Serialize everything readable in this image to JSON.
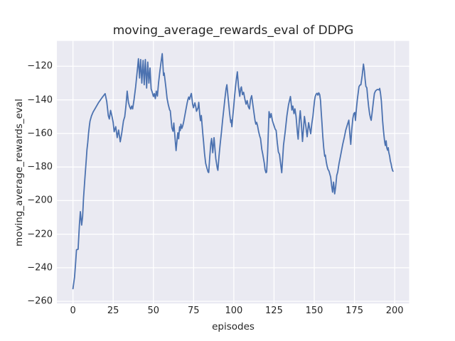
{
  "chart_data": {
    "type": "line",
    "title": "moving_average_rewards_eval of DDPG",
    "xlabel": "episodes",
    "ylabel": "moving_average_rewards_eval",
    "xlim": [
      -10,
      209
    ],
    "ylim": [
      -261.3,
      -104.9
    ],
    "xticks": [
      0,
      25,
      50,
      75,
      100,
      125,
      150,
      175,
      200
    ],
    "xtick_labels": [
      "0",
      "25",
      "50",
      "75",
      "100",
      "125",
      "150",
      "175",
      "200"
    ],
    "yticks": [
      -260,
      -240,
      -220,
      -200,
      -180,
      -160,
      -140,
      -120
    ],
    "ytick_labels": [
      "−260",
      "−240",
      "−220",
      "−200",
      "−180",
      "−160",
      "−140",
      "−120"
    ],
    "grid": true,
    "legend": null,
    "colors": {
      "figure_bg": "#FFFFFF",
      "plot_bg": "#EAEAF2",
      "grid": "#FFFFFF",
      "line": "#4C72B0",
      "text": "#262626"
    },
    "series": [
      {
        "name": "moving_average_rewards_eval",
        "color": "#4C72B0",
        "x": [
          0,
          1,
          1.7,
          2.2,
          3.2,
          4,
          4.6,
          5.4,
          6,
          6.6,
          7.4,
          8.3,
          8.7,
          9.2,
          9.7,
          10.2,
          10.6,
          11.2,
          11.5,
          12.5,
          14,
          16,
          18,
          20,
          21,
          22,
          22.6,
          23.4,
          24.3,
          25,
          25.6,
          26.6,
          27.5,
          28.4,
          29.4,
          30.3,
          31.4,
          32.2,
          33,
          33.7,
          34.5,
          35.2,
          35.9,
          36.5,
          37.1,
          38,
          39,
          40,
          40.7,
          41.4,
          42.1,
          42.8,
          43.6,
          44.3,
          45,
          45.8,
          46.5,
          47.2,
          47.9,
          48.6,
          49.3,
          50,
          50.6,
          51.2,
          51.8,
          52.5,
          53.2,
          53.9,
          54.7,
          55.5,
          56.3,
          56.7,
          57.8,
          58.5,
          59.3,
          60.1,
          60.5,
          61.5,
          62.2,
          62.7,
          63.4,
          64.1,
          64.8,
          65.2,
          65.7,
          66.3,
          66.7,
          67.1,
          67.7,
          68.3,
          68.8,
          69.5,
          70.3,
          71,
          71.5,
          72,
          72.5,
          73.2,
          73.6,
          74.4,
          74.9,
          75.8,
          76.4,
          76.8,
          77.8,
          78.2,
          78.9,
          79.3,
          79.8,
          80.3,
          80.8,
          81.2,
          81.8,
          82.5,
          83.3,
          84,
          84.4,
          85,
          85.7,
          86.2,
          86.9,
          87.7,
          88.8,
          89.7,
          90.1,
          90.8,
          91.5,
          92.3,
          93,
          93.8,
          94.5,
          95.2,
          95.7,
          96.4,
          97,
          97.4,
          98.1,
          98.4,
          98.8,
          99.4,
          100,
          100.5,
          101.1,
          101.7,
          102.2,
          102.9,
          103.7,
          104.3,
          104.7,
          105.4,
          106.1,
          106.9,
          107.6,
          108.3,
          109,
          109.7,
          110.4,
          111.1,
          111.8,
          112.5,
          113.2,
          113.7,
          114.2,
          114.7,
          115.4,
          116.1,
          116.6,
          117.4,
          118,
          119,
          119.4,
          120,
          120.4,
          121,
          121.5,
          121.9,
          122.6,
          123.2,
          124,
          124.7,
          125.7,
          126.3,
          127,
          127.7,
          128.4,
          129.1,
          129.8,
          130.9,
          132,
          133,
          134,
          135.2,
          136.1,
          136.7,
          137.4,
          138,
          138.7,
          139.6,
          140,
          140.8,
          141.3,
          142,
          142.7,
          143.9,
          144.8,
          145.6,
          146.5,
          147.4,
          147.8,
          148.5,
          149.2,
          149.7,
          150.2,
          150.6,
          151.2,
          151.7,
          152.3,
          152.8,
          153.4,
          153.9,
          154.3,
          154.8,
          155.3,
          155.9,
          156.5,
          156.9,
          157.5,
          158,
          158.5,
          159.2,
          160.2,
          160.8,
          161.4,
          162,
          162.7,
          163.3,
          164,
          164.6,
          165.4,
          166.3,
          167.7,
          168.7,
          169.6,
          170.7,
          171.5,
          172.3,
          172.7,
          173.3,
          174,
          174.6,
          175.2,
          175.6,
          176.2,
          176.8,
          177.3,
          177.8,
          178.4,
          179,
          179.8,
          180.6,
          181.2,
          181.6,
          182.1,
          182.7,
          183.2,
          183.8,
          184.4,
          185,
          185.4,
          186.1,
          186.7,
          187.4,
          188.1,
          188.9,
          189.6,
          190.3,
          190.7,
          191.2,
          191.7,
          192.1,
          192.5,
          193,
          193.4,
          193.8,
          194.2,
          194.7,
          195.1,
          195.6,
          196,
          196.3,
          196.9,
          197.3,
          197.8,
          198.2,
          198.7,
          199
        ],
        "y": [
          -252.5,
          -245.5,
          -236.5,
          -229.3,
          -229,
          -214.5,
          -206.6,
          -214.6,
          -209.5,
          -198,
          -187,
          -175.3,
          -169.7,
          -165.4,
          -159.8,
          -155.6,
          -152.7,
          -150.6,
          -149.6,
          -147.3,
          -144.8,
          -141.5,
          -138.8,
          -136.3,
          -141,
          -149.5,
          -151.4,
          -146.3,
          -150,
          -153.5,
          -159,
          -156,
          -162.5,
          -158,
          -165,
          -160,
          -152.5,
          -150,
          -143,
          -134.8,
          -141.5,
          -144,
          -145.5,
          -143.7,
          -145.4,
          -139.7,
          -132,
          -122.5,
          -115.5,
          -127,
          -116,
          -130,
          -116.5,
          -131,
          -116,
          -133,
          -117.5,
          -130,
          -121,
          -133.5,
          -135.5,
          -138,
          -136.3,
          -139.3,
          -134.8,
          -137.8,
          -130,
          -124,
          -118,
          -112.5,
          -125.4,
          -124,
          -132.8,
          -139.1,
          -143,
          -146,
          -146.5,
          -156.6,
          -158.7,
          -153.8,
          -162,
          -170.2,
          -163,
          -159.6,
          -163.2,
          -156,
          -158.3,
          -154.5,
          -157,
          -155.3,
          -153.2,
          -149.6,
          -145.4,
          -141.8,
          -139.7,
          -138.3,
          -139.8,
          -137.2,
          -136.2,
          -142.5,
          -144.7,
          -141.8,
          -144.3,
          -146.8,
          -144.7,
          -141.5,
          -149.6,
          -152.4,
          -149.3,
          -155.3,
          -161,
          -165.1,
          -172,
          -177.8,
          -180.7,
          -183,
          -183.3,
          -174.5,
          -166,
          -163,
          -171.5,
          -162.5,
          -175,
          -180.6,
          -182,
          -173.5,
          -166.5,
          -159.4,
          -152.4,
          -145.3,
          -139,
          -133.3,
          -131,
          -138.2,
          -144,
          -148.1,
          -153.5,
          -152,
          -156,
          -149.5,
          -143.3,
          -137.6,
          -131.8,
          -126.8,
          -123.3,
          -132,
          -137.9,
          -133.1,
          -132.3,
          -136.9,
          -135.5,
          -139.7,
          -142.6,
          -140.4,
          -144,
          -145.4,
          -139.7,
          -137.5,
          -142.6,
          -147.5,
          -152.4,
          -154.5,
          -153.4,
          -155.2,
          -158.8,
          -161.6,
          -163,
          -169.5,
          -172.4,
          -178,
          -181.5,
          -183.4,
          -183,
          -172,
          -158,
          -147,
          -150.6,
          -148.2,
          -152.4,
          -154.5,
          -157.4,
          -158.2,
          -165.3,
          -171,
          -172.5,
          -178,
          -183.4,
          -167,
          -158.5,
          -149.5,
          -143,
          -138,
          -146.1,
          -143.7,
          -148.2,
          -145.4,
          -149.9,
          -160.2,
          -163.4,
          -151.7,
          -146.5,
          -154.5,
          -164.8,
          -149.9,
          -155.9,
          -162,
          -153.6,
          -158.3,
          -160.2,
          -154.1,
          -149.6,
          -144.7,
          -140.4,
          -138,
          -136.6,
          -136.1,
          -137.2,
          -135.8,
          -136.9,
          -140.4,
          -146.8,
          -153.8,
          -161.6,
          -168.6,
          -173.6,
          -172.9,
          -177.1,
          -179.5,
          -181.3,
          -182.5,
          -186,
          -191,
          -195,
          -189,
          -196,
          -192,
          -185,
          -183,
          -178,
          -173.6,
          -166.5,
          -162.3,
          -158,
          -154.5,
          -152.1,
          -162.3,
          -166.5,
          -158,
          -151,
          -148.2,
          -147.5,
          -152.3,
          -145.4,
          -139.7,
          -136,
          -132.2,
          -131.2,
          -131,
          -125.6,
          -118.7,
          -123,
          -127.5,
          -132,
          -132.8,
          -138.3,
          -143.9,
          -148.2,
          -151,
          -152.2,
          -146.7,
          -141.7,
          -136.2,
          -134.7,
          -134,
          -133.8,
          -134.1,
          -133.2,
          -136.2,
          -140.4,
          -146.1,
          -152.4,
          -158,
          -161.7,
          -165.1,
          -167.2,
          -164.4,
          -168.6,
          -170,
          -168.5,
          -171.1,
          -173.6,
          -176.4,
          -178.2,
          -180.3,
          -182.1,
          -182.5
        ]
      }
    ]
  }
}
